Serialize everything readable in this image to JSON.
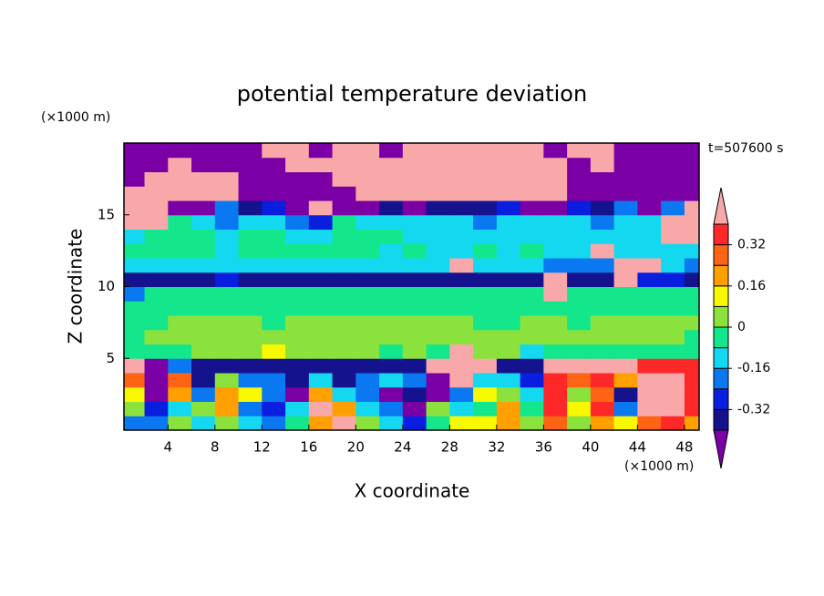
{
  "chart_data": {
    "type": "contour",
    "title": "potential temperature deviation",
    "x_label": "X coordinate",
    "y_label": "Z coordinate",
    "x_unit": "(×1000 m)",
    "y_unit": "(×1000 m)",
    "annotation": "t=507600 s",
    "xlim": [
      0.25,
      49.25
    ],
    "ylim": [
      0,
      20
    ],
    "xticks": [
      4,
      8,
      12,
      16,
      20,
      24,
      28,
      32,
      36,
      40,
      44,
      48
    ],
    "yticks": [
      5,
      10,
      15
    ],
    "x": [
      1,
      3,
      5,
      7,
      9,
      11,
      13,
      15,
      17,
      19,
      21,
      23,
      25,
      27,
      29,
      31,
      33,
      35,
      37,
      39,
      41,
      43,
      45,
      47,
      49
    ],
    "y": [
      0.5,
      1.5,
      2.5,
      3.5,
      4.5,
      5.5,
      6.5,
      7.5,
      8.5,
      9.5,
      10.5,
      11.5,
      12.5,
      13.5,
      14.5,
      15.5,
      16.5,
      17.5,
      18.5,
      19.5
    ],
    "z": [
      [
        -0.2,
        -0.2,
        0.04,
        -0.12,
        0.04,
        -0.12,
        -0.2,
        -0.04,
        0.2,
        0.45,
        0.04,
        -0.12,
        -0.28,
        -0.04,
        0.12,
        0.12,
        0.2,
        0.04,
        0.28,
        0.04,
        0.2,
        0.12,
        0.28,
        0.36,
        0.2
      ],
      [
        0.04,
        -0.28,
        -0.12,
        0.04,
        0.2,
        -0.2,
        -0.28,
        -0.12,
        0.45,
        0.2,
        -0.12,
        -0.2,
        -0.45,
        0.04,
        -0.12,
        -0.04,
        0.2,
        -0.04,
        0.36,
        0.12,
        0.36,
        -0.2,
        0.45,
        0.45,
        0.36
      ],
      [
        0.12,
        -0.45,
        0.2,
        -0.2,
        0.2,
        0.12,
        -0.2,
        -0.45,
        0.2,
        -0.12,
        -0.2,
        -0.45,
        -0.36,
        -0.45,
        -0.2,
        0.12,
        0.04,
        -0.12,
        0.36,
        0.04,
        0.28,
        -0.36,
        0.45,
        0.45,
        0.36
      ],
      [
        0.28,
        -0.45,
        0.28,
        -0.36,
        0.04,
        -0.2,
        -0.2,
        -0.36,
        -0.12,
        -0.36,
        -0.2,
        -0.12,
        -0.2,
        -0.45,
        0.45,
        -0.12,
        -0.12,
        -0.28,
        0.36,
        0.28,
        0.36,
        0.2,
        0.45,
        0.45,
        0.36
      ],
      [
        0.45,
        -0.45,
        -0.2,
        -0.36,
        -0.36,
        -0.36,
        -0.36,
        -0.36,
        -0.36,
        -0.36,
        -0.36,
        -0.36,
        -0.36,
        0.45,
        0.45,
        0.45,
        -0.36,
        -0.36,
        0.45,
        0.45,
        0.45,
        0.45,
        0.36,
        0.36,
        0.36
      ],
      [
        -0.04,
        -0.04,
        -0.04,
        0.04,
        0.04,
        0.04,
        0.12,
        0.04,
        0.04,
        0.04,
        0.04,
        -0.04,
        0.04,
        -0.04,
        0.45,
        0.04,
        0.04,
        -0.12,
        -0.04,
        -0.04,
        -0.04,
        -0.04,
        -0.04,
        -0.04,
        -0.04
      ],
      [
        -0.04,
        0.04,
        0.04,
        0.04,
        0.04,
        0.04,
        0.04,
        0.04,
        0.04,
        0.04,
        0.04,
        0.04,
        0.04,
        0.04,
        0.04,
        0.04,
        0.04,
        0.04,
        0.04,
        0.04,
        0.04,
        0.04,
        0.04,
        0.04,
        -0.04
      ],
      [
        -0.04,
        -0.04,
        0.04,
        0.04,
        0.04,
        0.04,
        -0.04,
        0.04,
        0.04,
        0.04,
        0.04,
        0.04,
        0.04,
        0.04,
        0.04,
        -0.04,
        -0.04,
        0.04,
        0.04,
        -0.04,
        0.04,
        0.04,
        0.04,
        0.04,
        0.04
      ],
      [
        -0.04,
        -0.04,
        -0.04,
        -0.04,
        -0.04,
        -0.04,
        -0.04,
        -0.04,
        -0.04,
        -0.04,
        -0.04,
        -0.04,
        -0.04,
        -0.04,
        -0.04,
        -0.04,
        -0.04,
        -0.04,
        -0.04,
        -0.04,
        -0.04,
        -0.04,
        -0.04,
        -0.04,
        -0.04
      ],
      [
        -0.2,
        -0.04,
        -0.04,
        -0.04,
        -0.04,
        -0.04,
        -0.04,
        -0.04,
        -0.04,
        -0.04,
        -0.04,
        -0.04,
        -0.04,
        -0.04,
        -0.04,
        -0.04,
        -0.04,
        -0.04,
        0.45,
        -0.04,
        -0.04,
        -0.04,
        -0.04,
        -0.04,
        -0.04
      ],
      [
        -0.36,
        -0.36,
        -0.36,
        -0.36,
        -0.28,
        -0.36,
        -0.36,
        -0.36,
        -0.36,
        -0.36,
        -0.36,
        -0.36,
        -0.36,
        -0.36,
        -0.36,
        -0.36,
        -0.36,
        -0.36,
        0.45,
        -0.36,
        -0.36,
        0.45,
        -0.28,
        -0.28,
        -0.36
      ],
      [
        -0.12,
        -0.12,
        -0.12,
        -0.12,
        -0.12,
        -0.12,
        -0.12,
        -0.12,
        -0.12,
        -0.12,
        -0.12,
        -0.12,
        -0.12,
        -0.12,
        0.45,
        -0.12,
        -0.12,
        -0.12,
        -0.2,
        -0.2,
        -0.2,
        0.45,
        0.45,
        -0.12,
        -0.2
      ],
      [
        -0.04,
        -0.04,
        -0.04,
        -0.04,
        -0.12,
        -0.04,
        -0.04,
        -0.04,
        -0.04,
        -0.04,
        -0.04,
        -0.12,
        -0.04,
        -0.12,
        -0.12,
        -0.04,
        -0.12,
        -0.04,
        -0.12,
        -0.12,
        0.45,
        -0.12,
        -0.12,
        -0.12,
        -0.12
      ],
      [
        -0.12,
        -0.04,
        -0.04,
        -0.04,
        -0.12,
        -0.04,
        -0.04,
        -0.12,
        -0.12,
        -0.04,
        -0.04,
        -0.04,
        -0.12,
        -0.12,
        -0.12,
        -0.12,
        -0.12,
        -0.12,
        -0.12,
        -0.12,
        -0.12,
        -0.12,
        -0.12,
        0.45,
        0.45
      ],
      [
        0.45,
        0.45,
        -0.04,
        -0.12,
        -0.2,
        -0.12,
        -0.12,
        -0.2,
        -0.28,
        -0.04,
        -0.12,
        -0.12,
        -0.12,
        -0.12,
        -0.12,
        -0.2,
        -0.12,
        -0.12,
        -0.12,
        -0.12,
        -0.2,
        -0.12,
        -0.12,
        0.45,
        0.45
      ],
      [
        0.45,
        0.45,
        -0.45,
        -0.45,
        -0.2,
        -0.36,
        -0.28,
        -0.45,
        0.45,
        -0.45,
        -0.45,
        -0.36,
        -0.45,
        -0.36,
        -0.36,
        -0.36,
        -0.28,
        -0.45,
        -0.45,
        -0.28,
        -0.36,
        -0.2,
        -0.45,
        -0.2,
        0.45
      ],
      [
        0.45,
        0.45,
        0.45,
        0.45,
        0.45,
        -0.45,
        -0.45,
        -0.45,
        -0.45,
        -0.45,
        0.45,
        0.45,
        0.45,
        0.45,
        0.45,
        0.45,
        0.45,
        0.45,
        0.45,
        -0.45,
        -0.45,
        -0.45,
        -0.45,
        -0.45,
        -0.45
      ],
      [
        -0.45,
        0.45,
        0.45,
        0.45,
        0.45,
        -0.45,
        -0.45,
        -0.45,
        -0.45,
        0.45,
        0.45,
        0.45,
        0.45,
        0.45,
        0.45,
        0.45,
        0.45,
        0.45,
        0.45,
        -0.45,
        -0.45,
        -0.45,
        -0.45,
        -0.45,
        -0.45
      ],
      [
        -0.45,
        -0.45,
        0.45,
        -0.45,
        -0.45,
        -0.45,
        -0.45,
        0.45,
        0.45,
        0.45,
        0.45,
        0.45,
        0.45,
        0.45,
        0.45,
        0.45,
        0.45,
        0.45,
        0.45,
        -0.45,
        0.45,
        -0.45,
        -0.45,
        -0.45,
        -0.45
      ],
      [
        -0.45,
        -0.45,
        -0.45,
        -0.45,
        -0.45,
        -0.45,
        0.45,
        0.45,
        -0.45,
        0.45,
        0.45,
        -0.45,
        0.45,
        0.45,
        0.45,
        0.45,
        0.45,
        0.45,
        -0.45,
        0.45,
        0.45,
        -0.45,
        -0.45,
        -0.45,
        -0.45
      ]
    ],
    "levels": [
      -0.4,
      -0.32,
      -0.24,
      -0.16,
      -0.08,
      0,
      0.08,
      0.16,
      0.24,
      0.32,
      0.4
    ],
    "colorbar_ticks": [
      -0.32,
      -0.16,
      0,
      0.16,
      0.32
    ],
    "colors": [
      "#7a00a6",
      "#14128c",
      "#0a1ee0",
      "#0a78f0",
      "#14d8f0",
      "#14e68c",
      "#8ce23c",
      "#f8f800",
      "#ffa000",
      "#ff6414",
      "#ff2828",
      "#f8a8a8"
    ]
  }
}
